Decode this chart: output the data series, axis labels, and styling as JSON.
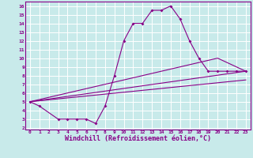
{
  "background_color": "#c8eaea",
  "line_color": "#880088",
  "grid_color": "#ffffff",
  "xlabel": "Windchill (Refroidissement éolien,°C)",
  "xlabel_color": "#880088",
  "tick_color": "#880088",
  "spine_color": "#880088",
  "xlim": [
    -0.5,
    23.5
  ],
  "ylim": [
    1.8,
    16.5
  ],
  "xticks": [
    0,
    1,
    2,
    3,
    4,
    5,
    6,
    7,
    8,
    9,
    10,
    11,
    12,
    13,
    14,
    15,
    16,
    17,
    18,
    19,
    20,
    21,
    22,
    23
  ],
  "yticks": [
    2,
    3,
    4,
    5,
    6,
    7,
    8,
    9,
    10,
    11,
    12,
    13,
    14,
    15,
    16
  ],
  "line1_x": [
    0,
    1,
    3,
    4,
    5,
    6,
    7,
    8,
    9,
    10,
    11,
    12,
    13,
    14,
    15,
    16,
    17,
    18,
    19,
    20,
    21,
    22,
    23
  ],
  "line1_y": [
    5,
    4.5,
    3,
    3,
    3,
    3,
    2.5,
    4.5,
    8,
    12,
    14,
    14,
    15.5,
    15.5,
    16,
    14.5,
    12,
    10,
    8.5,
    8.5,
    8.5,
    8.5,
    8.5
  ],
  "line2_x": [
    0,
    23
  ],
  "line2_y": [
    5,
    8.5
  ],
  "line3_x": [
    0,
    23
  ],
  "line3_y": [
    5,
    7.5
  ],
  "line4_x": [
    0,
    20,
    23
  ],
  "line4_y": [
    5,
    10,
    8.5
  ],
  "tick_fontsize": 4.5,
  "xlabel_fontsize": 6.0,
  "marker": "D",
  "markersize": 2.0
}
